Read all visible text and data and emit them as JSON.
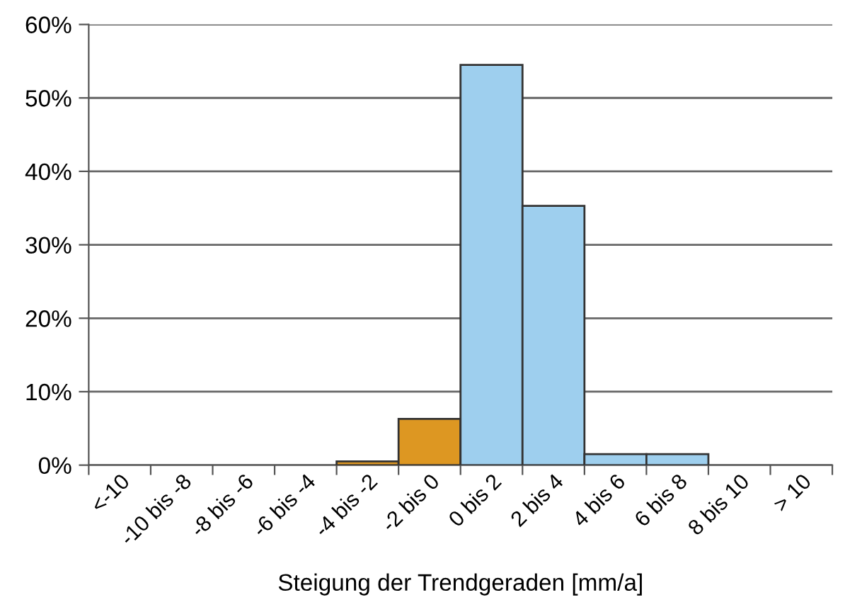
{
  "chart_data": {
    "type": "bar",
    "xlabel": "Steigung der Trendgeraden [mm/a]",
    "categories": [
      "<-10",
      "-10 bis -8",
      "-8 bis -6",
      "-6 bis -4",
      "-4 bis -2",
      "-2 bis 0",
      "0 bis 2",
      "2 bis 4",
      "4 bis 6",
      "6 bis 8",
      "8 bis 10",
      "> 10"
    ],
    "values": [
      0,
      0,
      0,
      0,
      0.5,
      6.3,
      54.5,
      35.3,
      1.5,
      1.5,
      0,
      0
    ],
    "colors": [
      null,
      null,
      null,
      null,
      "#dd9722",
      "#dd9722",
      "#9ecfee",
      "#9ecfee",
      "#9ecfee",
      "#9ecfee",
      null,
      null
    ],
    "ylim": [
      0,
      60
    ],
    "yticks": [
      {
        "value": 0,
        "label": "0%"
      },
      {
        "value": 10,
        "label": "10%"
      },
      {
        "value": 20,
        "label": "20%"
      },
      {
        "value": 30,
        "label": "30%"
      },
      {
        "value": 40,
        "label": "40%"
      },
      {
        "value": 50,
        "label": "50%"
      },
      {
        "value": 60,
        "label": "60%"
      }
    ],
    "grid": "y",
    "legend": false
  }
}
